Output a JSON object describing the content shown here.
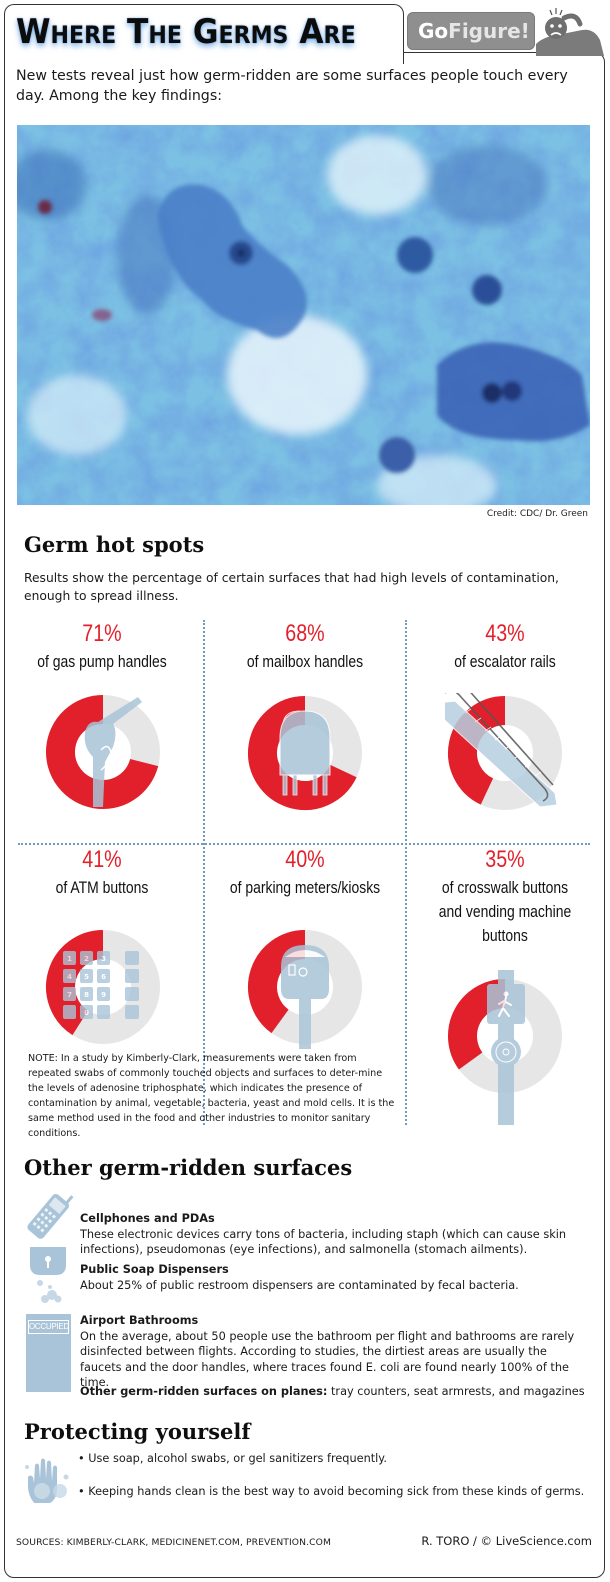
{
  "header": {
    "title": "Where The Germs Are",
    "badge_go": "Go",
    "badge_figure": "Figure!",
    "intro": "New tests reveal just how germ-ridden are some surfaces people touch every day. Among the key findings:"
  },
  "photo": {
    "credit": "Credit: CDC/ Dr. Green"
  },
  "hot_spots": {
    "heading": "Germ hot spots",
    "description": "Results show the percentage of certain surfaces that had high levels of contamination, enough to spread illness.",
    "items": [
      {
        "pct": "71%",
        "label": "of gas pump handles",
        "icon": "gas-pump-nozzle-icon"
      },
      {
        "pct": "68%",
        "label": "of mailbox handles",
        "icon": "mailbox-icon"
      },
      {
        "pct": "43%",
        "label": "of escalator rails",
        "icon": "escalator-icon"
      },
      {
        "pct": "41%",
        "label": "of ATM buttons",
        "icon": "atm-keypad-icon"
      },
      {
        "pct": "40%",
        "label": "of parking meters/kiosks",
        "icon": "parking-meter-icon"
      },
      {
        "pct": "35%",
        "label_lines": [
          "of crosswalk buttons",
          "and vending machine",
          "buttons"
        ],
        "icon": "crosswalk-button-icon"
      }
    ],
    "note": "NOTE: In a study by Kimberly-Clark, measurements were taken from repeated swabs of commonly touched objects and surfaces to deter-mine the levels of adenosine triphosphate, which indicates the presence of contamination by animal, vegetable, bacteria, yeast and mold cells.  It is the same method used in the food and other industries to monitor sanitary conditions."
  },
  "other_surfaces": {
    "heading": "Other germ-ridden surfaces",
    "items": [
      {
        "title": "Cellphones and PDAs",
        "text": "These electronic devices carry tons of bacteria, including staph (which can cause skin infections), pseudomonas (eye infections), and salmonella (stomach ailments).",
        "icon": "cellphone-icon"
      },
      {
        "title": "Public Soap Dispensers",
        "text": "About 25% of public restroom dispensers are contaminated by fecal bacteria.",
        "icon": "soap-dispenser-icon"
      },
      {
        "title": "Airport Bathrooms",
        "text": "On the average, about 50 people use the bathroom per flight and bathrooms are rarely disinfected between flights. According to studies, the dirtiest areas are usually the faucets and the door handles, where traces found E. coli are found nearly 100% of the time.",
        "icon": "occupied-sign-icon",
        "icon_text": "OCCUPIED"
      }
    ],
    "planes_label": "Other germ-ridden surfaces on planes:",
    "planes_text": " tray counters, seat armrests, and magazines"
  },
  "protecting": {
    "heading": "Protecting yourself",
    "bullets": [
      "• Use soap, alcohol swabs, or gel sanitizers frequently.",
      "• Keeping hands clean is the best way to avoid becoming sick from these kinds of germs."
    ],
    "icon": "hand-icon"
  },
  "footer": {
    "sources": "SOURCES: KIMBERLY-CLARK, MEDICINENET.COM, PREVENTION.COM",
    "byline": "R. TORO / © LiveScience.com"
  },
  "colors": {
    "accent_red": "#e2202b",
    "ring_gray": "#e6e6e6",
    "icon_blue": "#a9c4d8",
    "separator_blue": "#6f9cc0"
  },
  "chart_data": {
    "type": "pie",
    "title": "Germ hot spots",
    "subtitle": "Results show the percentage of certain surfaces that had high levels of contamination, enough to spread illness.",
    "categories": [
      "gas pump handles",
      "mailbox handles",
      "escalator rails",
      "ATM buttons",
      "parking meters/kiosks",
      "crosswalk buttons and vending machine buttons"
    ],
    "values": [
      71,
      68,
      43,
      41,
      40,
      35
    ],
    "unit": "%",
    "style": "donut, red segment drawn counter-clockwise from 12 o'clock, remainder light gray",
    "layout": "3x2 grid separated by dotted blue lines"
  }
}
